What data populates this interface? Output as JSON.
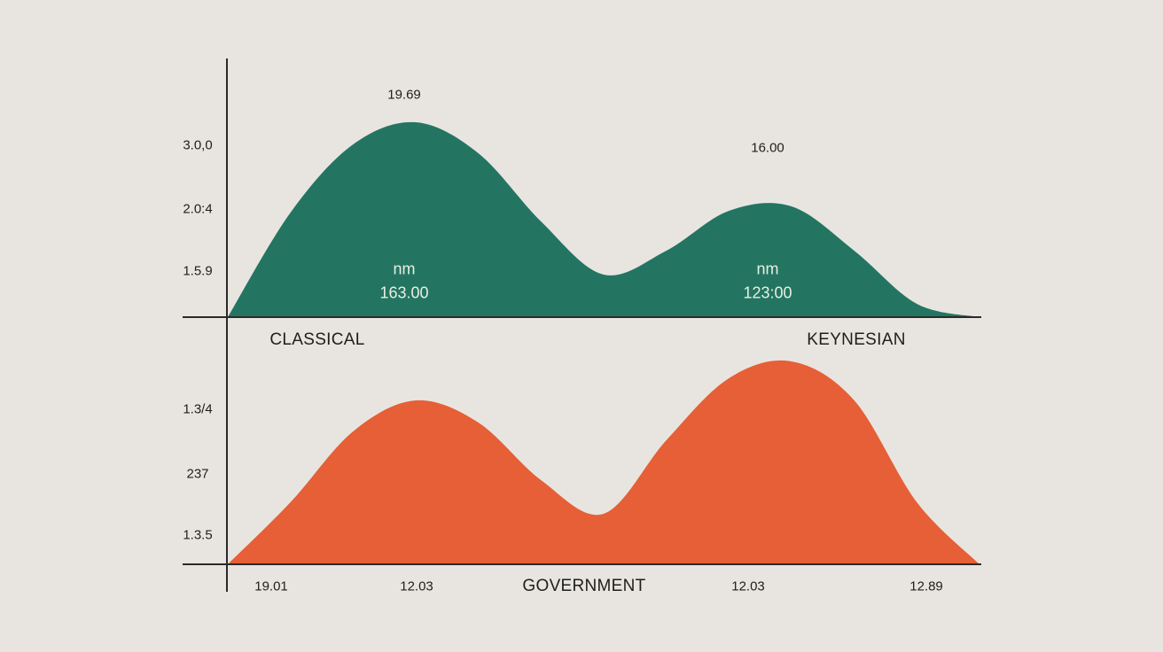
{
  "chart_data": {
    "type": "area",
    "colors": {
      "top": "#237562",
      "bottom": "#e65f36",
      "axis": "#2a2a2a",
      "background": "#e8e5e0"
    },
    "grid": false,
    "panels": [
      {
        "series_name": "CLASSICAL",
        "secondary_label": "KEYNESIAN",
        "ytick_labels": [
          "3.0,0",
          "2.0:4",
          "1.5.9"
        ],
        "peak_labels": [
          "19.69",
          "16.00"
        ],
        "inner_labels": [
          {
            "unit": "nm",
            "value": "163.00"
          },
          {
            "unit": "nm",
            "value": "123:00"
          }
        ],
        "ylim": [
          0,
          240
        ],
        "values": [
          0,
          118,
          195,
          220,
          185,
          108,
          48,
          75,
          120,
          125,
          75,
          15,
          0
        ]
      },
      {
        "series_name": "GOVERNMENT",
        "ytick_labels": [
          "1.3/4",
          "237",
          "1.3.5"
        ],
        "xtick_labels": [
          "19.01",
          "12.03",
          "12.03",
          "12.89"
        ],
        "ylim": [
          0,
          240
        ],
        "values": [
          0,
          70,
          150,
          185,
          160,
          95,
          57,
          140,
          210,
          229,
          185,
          70,
          0
        ]
      }
    ]
  }
}
